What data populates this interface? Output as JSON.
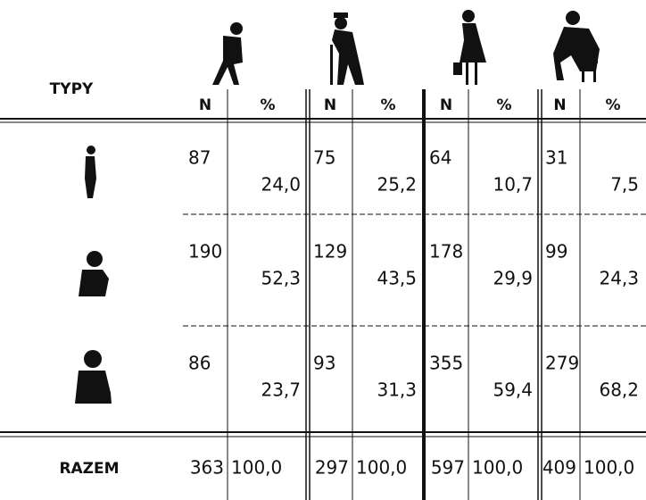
{
  "header": {
    "label": "TYPY",
    "columns": [
      "N",
      "%",
      "N",
      "%",
      "N",
      "%",
      "N",
      "%"
    ]
  },
  "rows": [
    [
      "87",
      "24,0",
      "75",
      "25,2",
      "64",
      "10,7",
      "31",
      "7,5"
    ],
    [
      "190",
      "52,3",
      "129",
      "43,5",
      "178",
      "29,9",
      "99",
      "24,3"
    ],
    [
      "86",
      "23,7",
      "93",
      "31,3",
      "355",
      "59,4",
      "279",
      "68,2"
    ]
  ],
  "total": {
    "label": "RAZEM",
    "values": [
      "363",
      "100,0",
      "297",
      "100,0",
      "597",
      "100,0",
      "409",
      "100,0"
    ]
  }
}
